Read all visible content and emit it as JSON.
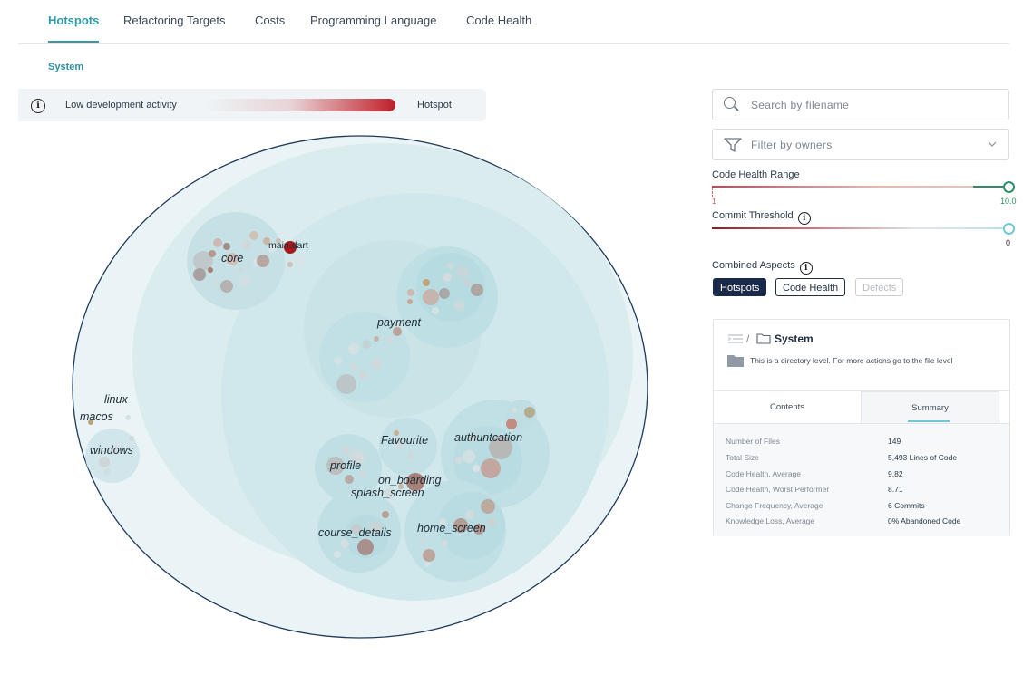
{
  "tabs": [
    {
      "label": "Hotspots",
      "active": true
    },
    {
      "label": "Refactoring Targets",
      "active": false
    },
    {
      "label": "Costs",
      "active": false
    },
    {
      "label": "Programming Language",
      "active": false
    },
    {
      "label": "Code Health",
      "active": false
    }
  ],
  "breadcrumb": "System",
  "legend": {
    "low_label": "Low development activity",
    "high_label": "Hotspot",
    "info_icon": "info-icon"
  },
  "map": {
    "labels": {
      "core": "core",
      "main_dart": "main.dart",
      "payment": "payment",
      "linux": "linux",
      "macos": "macos",
      "windows": "windows",
      "favourite": "Favourite",
      "authentication": "authuntcation",
      "profile": "profile",
      "on_boarding": "on_boarding",
      "splash_screen": "splash_screen",
      "course_details": "course_details",
      "home_screen": "home_screen"
    }
  },
  "search": {
    "placeholder": "Search by filename",
    "icon": "search-icon"
  },
  "filter": {
    "placeholder": "Filter by owners",
    "icon": "filter-icon"
  },
  "code_health_range": {
    "label": "Code Health Range",
    "min": "1",
    "max": "10.0"
  },
  "commit_threshold": {
    "label": "Commit Threshold",
    "value": "0"
  },
  "combined_aspects": {
    "label": "Combined Aspects",
    "chips": [
      {
        "label": "Hotspots",
        "state": "selected"
      },
      {
        "label": "Code Health",
        "state": "default"
      },
      {
        "label": "Defects",
        "state": "disabled"
      }
    ]
  },
  "details": {
    "path_separator": "/",
    "path": "System",
    "note": "This is a directory level. For more actions go to the file level",
    "tabs": [
      "Contents",
      "Summary"
    ],
    "active_tab": "Summary",
    "summary": [
      {
        "label": "Number of Files",
        "value": "149"
      },
      {
        "label": "Total Size",
        "value": "5,493 Lines of Code"
      },
      {
        "label": "Code Health, Average",
        "value": "9.82"
      },
      {
        "label": "Code Health, Worst Performer",
        "value": "8.71"
      },
      {
        "label": "Change Frequency, Average",
        "value": "6 Commits"
      },
      {
        "label": "Knowledge Loss, Average",
        "value": "0% Abandoned Code"
      }
    ]
  },
  "colors": {
    "accent": "#2f9aa8",
    "navy": "#1b2a4a",
    "hotspot": "#b9202b",
    "healthy": "#2e8f67"
  }
}
